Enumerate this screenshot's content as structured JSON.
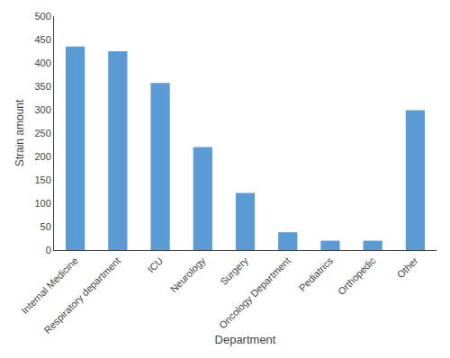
{
  "chart_data": {
    "type": "bar",
    "categories": [
      "Internal Medicine",
      "Respiratory department",
      "ICU",
      "Neurology",
      "Surgery",
      "Oncology Department",
      "Pediatrics",
      "Orthopedic",
      "Other"
    ],
    "values": [
      435,
      425,
      357,
      220,
      122,
      38,
      20,
      20,
      299
    ],
    "color": "#5b9bd5",
    "xlabel": "Department",
    "ylabel": "Strain amount",
    "ylim": [
      0,
      500
    ],
    "yticks": [
      0,
      50,
      100,
      150,
      200,
      250,
      300,
      350,
      400,
      450,
      500
    ],
    "grid": false
  }
}
